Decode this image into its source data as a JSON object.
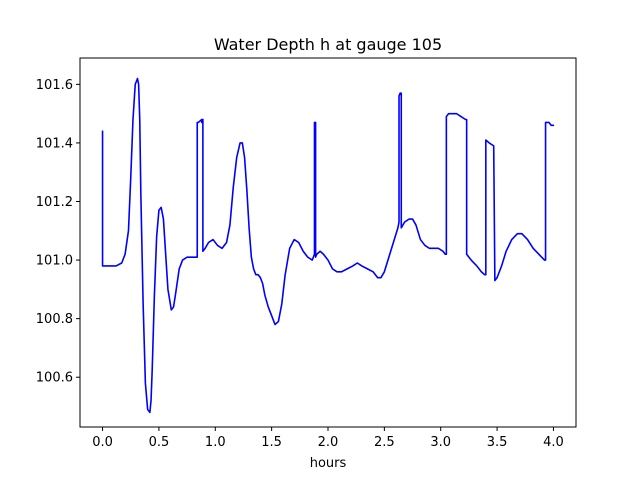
{
  "chart_data": {
    "type": "line",
    "title": "Water Depth h at gauge 105",
    "xlabel": "hours",
    "ylabel": "",
    "xlim": [
      -0.2,
      4.2
    ],
    "ylim": [
      100.43,
      101.69
    ],
    "xticks": [
      0.0,
      0.5,
      1.0,
      1.5,
      2.0,
      2.5,
      3.0,
      3.5,
      4.0
    ],
    "xtick_labels": [
      "0.0",
      "0.5",
      "1.0",
      "1.5",
      "2.0",
      "2.5",
      "3.0",
      "3.5",
      "4.0"
    ],
    "yticks": [
      100.6,
      100.8,
      101.0,
      101.2,
      101.4,
      101.6
    ],
    "ytick_labels": [
      "100.6",
      "100.8",
      "101.0",
      "101.2",
      "101.4",
      "101.6"
    ],
    "grid": false,
    "legend": "none",
    "series": [
      {
        "color": "#0000ff",
        "x": [
          0.0,
          0.0,
          0.05,
          0.12,
          0.17,
          0.2,
          0.23,
          0.25,
          0.27,
          0.29,
          0.31,
          0.32,
          0.33,
          0.34,
          0.36,
          0.38,
          0.4,
          0.42,
          0.43,
          0.44,
          0.46,
          0.48,
          0.5,
          0.52,
          0.54,
          0.56,
          0.58,
          0.61,
          0.63,
          0.65,
          0.68,
          0.71,
          0.75,
          0.8,
          0.84,
          0.84,
          0.85,
          0.88,
          0.88,
          0.89,
          0.89,
          0.91,
          0.94,
          0.98,
          1.02,
          1.06,
          1.1,
          1.13,
          1.16,
          1.19,
          1.22,
          1.24,
          1.26,
          1.28,
          1.3,
          1.32,
          1.34,
          1.36,
          1.38,
          1.4,
          1.42,
          1.44,
          1.47,
          1.5,
          1.53,
          1.56,
          1.59,
          1.62,
          1.66,
          1.7,
          1.74,
          1.78,
          1.82,
          1.86,
          1.87,
          1.88,
          1.88,
          1.89,
          1.89,
          1.9,
          1.93,
          1.96,
          2.0,
          2.04,
          2.08,
          2.12,
          2.17,
          2.22,
          2.26,
          2.3,
          2.35,
          2.4,
          2.44,
          2.47,
          2.5,
          2.54,
          2.58,
          2.62,
          2.63,
          2.63,
          2.64,
          2.65,
          2.65,
          2.68,
          2.72,
          2.75,
          2.78,
          2.82,
          2.86,
          2.9,
          2.94,
          2.98,
          3.02,
          3.04,
          3.05,
          3.05,
          3.07,
          3.1,
          3.14,
          3.18,
          3.22,
          3.23,
          3.23,
          3.27,
          3.32,
          3.36,
          3.39,
          3.4,
          3.4,
          3.43,
          3.47,
          3.47,
          3.48,
          3.48,
          3.5,
          3.54,
          3.58,
          3.63,
          3.68,
          3.72,
          3.77,
          3.82,
          3.87,
          3.92,
          3.93,
          3.93,
          3.96,
          3.98,
          4.0
        ],
        "y": [
          101.44,
          100.98,
          100.98,
          100.98,
          100.99,
          101.02,
          101.1,
          101.28,
          101.48,
          101.6,
          101.62,
          101.6,
          101.48,
          101.22,
          100.85,
          100.58,
          100.49,
          100.48,
          100.52,
          100.62,
          100.88,
          101.08,
          101.17,
          101.18,
          101.14,
          101.02,
          100.9,
          100.83,
          100.84,
          100.89,
          100.97,
          101.0,
          101.01,
          101.01,
          101.01,
          101.47,
          101.47,
          101.48,
          101.47,
          101.48,
          101.03,
          101.04,
          101.06,
          101.07,
          101.05,
          101.04,
          101.06,
          101.12,
          101.25,
          101.35,
          101.4,
          101.4,
          101.35,
          101.24,
          101.11,
          101.01,
          100.97,
          100.95,
          100.95,
          100.94,
          100.92,
          100.88,
          100.84,
          100.81,
          100.78,
          100.79,
          100.85,
          100.95,
          101.04,
          101.07,
          101.06,
          101.03,
          101.01,
          101.0,
          101.01,
          101.02,
          101.47,
          101.47,
          101.01,
          101.02,
          101.03,
          101.02,
          101.0,
          100.97,
          100.96,
          100.96,
          100.97,
          100.98,
          100.99,
          100.98,
          100.97,
          100.96,
          100.94,
          100.94,
          100.96,
          101.01,
          101.06,
          101.11,
          101.13,
          101.56,
          101.57,
          101.57,
          101.11,
          101.13,
          101.14,
          101.14,
          101.12,
          101.07,
          101.05,
          101.04,
          101.04,
          101.04,
          101.03,
          101.02,
          101.02,
          101.49,
          101.5,
          101.5,
          101.5,
          101.49,
          101.48,
          101.48,
          101.02,
          101.0,
          100.98,
          100.96,
          100.95,
          100.95,
          101.41,
          101.4,
          101.39,
          101.39,
          100.94,
          100.93,
          100.94,
          100.98,
          101.03,
          101.07,
          101.09,
          101.09,
          101.07,
          101.04,
          101.02,
          101.0,
          101.0,
          101.47,
          101.47,
          101.46,
          101.46
        ]
      }
    ]
  }
}
